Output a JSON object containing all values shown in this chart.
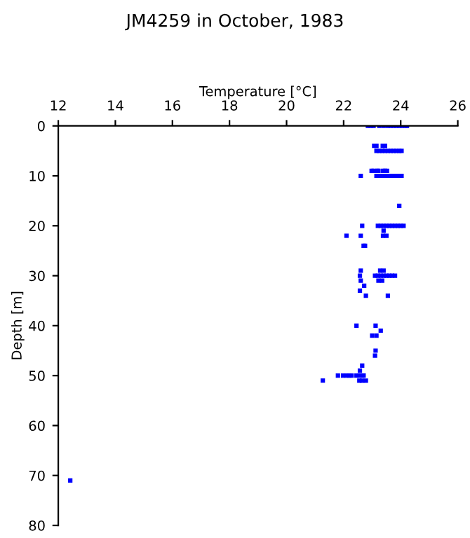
{
  "chart_data": {
    "type": "scatter",
    "title": "JM4259 in October, 1983",
    "xlabel": "Temperature [°C]",
    "ylabel": "Depth [m]",
    "xlim": [
      12,
      26
    ],
    "xticks": [
      12,
      14,
      16,
      18,
      20,
      22,
      24,
      26
    ],
    "ylim": [
      80,
      0
    ],
    "yticks": [
      0,
      10,
      20,
      30,
      40,
      50,
      60,
      70,
      80
    ],
    "grid": false,
    "marker": "square",
    "series": [
      {
        "color": "#0000ff",
        "x": [
          22.85,
          22.95,
          23.05,
          23.25,
          23.4,
          23.55,
          23.65,
          23.75,
          23.85,
          23.95,
          24.05,
          24.15,
          24.22,
          23.07,
          23.15,
          23.37,
          23.45,
          23.15,
          23.25,
          23.35,
          23.45,
          23.55,
          23.65,
          23.75,
          23.85,
          23.95,
          24.03,
          22.98,
          23.05,
          23.18,
          23.22,
          23.38,
          23.45,
          23.52,
          22.6,
          23.15,
          23.25,
          23.35,
          23.45,
          23.55,
          23.65,
          23.75,
          23.85,
          23.95,
          24.03,
          23.95,
          22.65,
          23.2,
          23.3,
          23.4,
          23.5,
          23.6,
          23.7,
          23.8,
          23.9,
          24.0,
          24.1,
          23.4,
          22.1,
          22.6,
          23.38,
          23.5,
          22.7,
          22.75,
          22.6,
          23.28,
          23.4,
          22.57,
          23.1,
          23.2,
          23.3,
          23.4,
          23.5,
          23.6,
          23.7,
          23.8,
          22.6,
          23.22,
          23.35,
          22.72,
          22.57,
          22.78,
          23.55,
          22.45,
          23.12,
          23.3,
          23.0,
          23.15,
          23.12,
          23.1,
          22.65,
          22.57,
          21.8,
          21.98,
          22.1,
          22.2,
          22.28,
          22.45,
          22.55,
          22.65,
          22.7,
          21.27,
          22.55,
          22.65,
          22.78,
          12.42
        ],
        "values": [
          0,
          0,
          0,
          0,
          0,
          0,
          0,
          0,
          0,
          0,
          0,
          0,
          0,
          4,
          4,
          4,
          4,
          5,
          5,
          5,
          5,
          5,
          5,
          5,
          5,
          5,
          5,
          9,
          9,
          9,
          9,
          9,
          9,
          9,
          10,
          10,
          10,
          10,
          10,
          10,
          10,
          10,
          10,
          10,
          10,
          16,
          20,
          20,
          20,
          20,
          20,
          20,
          20,
          20,
          20,
          20,
          20,
          21,
          22,
          22,
          22,
          22,
          24,
          24,
          29,
          29,
          29,
          30,
          30,
          30,
          30,
          30,
          30,
          30,
          30,
          30,
          31,
          31,
          31,
          32,
          33,
          34,
          34,
          40,
          40,
          41,
          42,
          42,
          45,
          46,
          48,
          49,
          50,
          50,
          50,
          50,
          50,
          50,
          50,
          50,
          50,
          51,
          51,
          51,
          51,
          71
        ]
      }
    ]
  }
}
